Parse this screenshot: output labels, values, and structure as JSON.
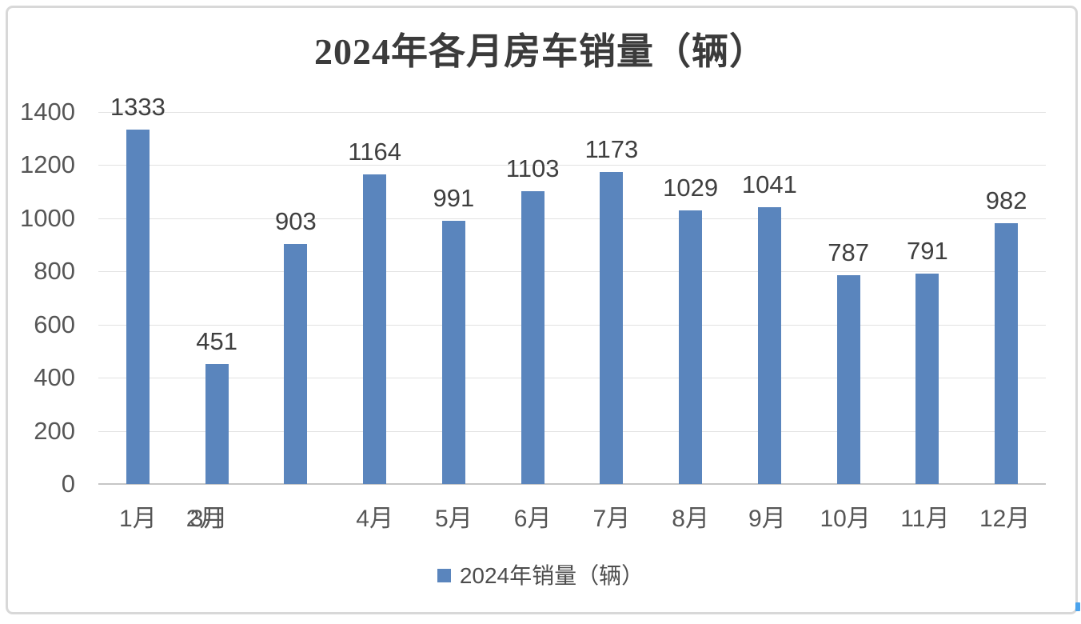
{
  "chart_data": {
    "type": "bar",
    "title": "2024年各月房车销量（辆）",
    "categories": [
      "1月",
      "2月",
      "3月",
      "4月",
      "5月",
      "6月",
      "7月",
      "8月",
      "9月",
      "10月",
      "11月",
      "12月"
    ],
    "series": [
      {
        "name": "2024年销量（辆）",
        "values": [
          1333,
          451,
          903,
          1164,
          991,
          1103,
          1173,
          1029,
          1041,
          787,
          791,
          982
        ]
      }
    ],
    "data_labels": [
      "1333",
      "451",
      "903",
      "1164",
      "991",
      "1103",
      "1173",
      "1029",
      "1041",
      "787",
      "791",
      "982"
    ],
    "ylim": [
      0,
      1400
    ],
    "y_ticks": [
      "0",
      "200",
      "400",
      "600",
      "800",
      "1000",
      "1200",
      "1400"
    ],
    "grid": true,
    "legend_position": "bottom",
    "bar_color": "#5a85bd",
    "x_axis_note": "category labels 2月 and 3月 are overlapped under the second bar; the third bar has no label beneath it",
    "x_label_slots": [
      {
        "text": "1月",
        "slot": 0,
        "dx": 0
      },
      {
        "text": "2月",
        "slot": 1,
        "dx": -15
      },
      {
        "text": "3月",
        "slot": 1,
        "dx": -10
      },
      {
        "text": "4月",
        "slot": 3,
        "dx": 0
      },
      {
        "text": "5月",
        "slot": 4,
        "dx": 0
      },
      {
        "text": "6月",
        "slot": 5,
        "dx": 0
      },
      {
        "text": "7月",
        "slot": 6,
        "dx": 0
      },
      {
        "text": "8月",
        "slot": 7,
        "dx": 0
      },
      {
        "text": "9月",
        "slot": 8,
        "dx": -3
      },
      {
        "text": "10月",
        "slot": 9,
        "dx": -4
      },
      {
        "text": "11月",
        "slot": 10,
        "dx": -3
      },
      {
        "text": "12月",
        "slot": 11,
        "dx": -2
      }
    ],
    "colors": {
      "bar": "#5a85bd",
      "title_text": "#3b3b3b",
      "value_label_text": "#3f3f3f",
      "axis_label_text": "#565656",
      "gridline": "#e2e2e2",
      "axis_line": "#c6c6c6",
      "frame_border": "#d8d8d8",
      "cursor_artifact": "#4ba3ec"
    }
  }
}
